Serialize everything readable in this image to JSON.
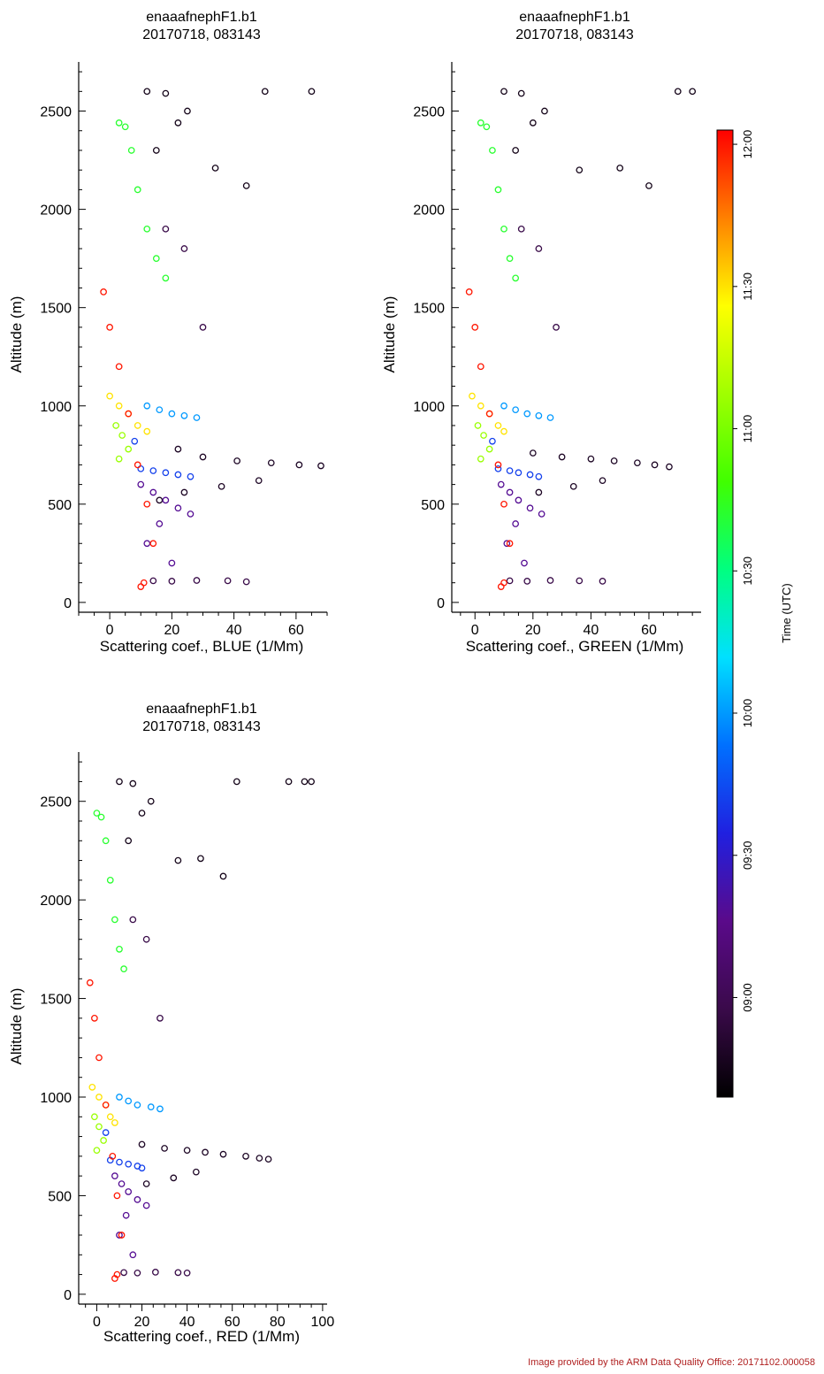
{
  "credit": "Image provided by the ARM Data Quality Office: 20171102.000058",
  "colorbar": {
    "label": "Time (UTC)",
    "ticks": [
      "09:00",
      "09:30",
      "10:00",
      "10:30",
      "11:00",
      "11:30",
      "12:00"
    ],
    "tick_hours": [
      9.0,
      9.5,
      10.0,
      10.5,
      11.0,
      11.5,
      12.0
    ],
    "range_hours": [
      8.65,
      12.05
    ],
    "stops": [
      "#000000",
      "#3a0a4a",
      "#5a0a8a",
      "#2020e0",
      "#0070ff",
      "#00e0ff",
      "#00ff80",
      "#40ff00",
      "#a0ff00",
      "#ffff00",
      "#ff8000",
      "#ff0000"
    ]
  },
  "chart_data": [
    {
      "type": "scatter",
      "title": "enaaafnephF1.b1",
      "subtitle": "20170718, 083143",
      "xlabel": "Scattering coef., BLUE (1/Mm)",
      "ylabel": "Altitude (m)",
      "xlim": [
        -10,
        70
      ],
      "ylim": [
        -50,
        2750
      ],
      "xticks": [
        0,
        20,
        40,
        60
      ],
      "xtick_labels": [
        "0",
        "20",
        "40",
        "60"
      ],
      "yticks": [
        0,
        500,
        1000,
        1500,
        2000,
        2500
      ],
      "ytick_labels": [
        "0",
        "500",
        "1000",
        "1500",
        "2000",
        "2500"
      ],
      "series": [
        {
          "time_h": 8.75,
          "x": [
            12,
            18,
            25,
            34,
            44,
            50,
            65,
            22,
            15
          ],
          "y": [
            2600,
            2590,
            2500,
            2210,
            2120,
            2600,
            2600,
            2440,
            2300
          ]
        },
        {
          "time_h": 8.8,
          "x": [
            22,
            30,
            41,
            52,
            61,
            68,
            48,
            36,
            24,
            16
          ],
          "y": [
            780,
            740,
            720,
            710,
            700,
            695,
            620,
            590,
            560,
            520
          ]
        },
        {
          "time_h": 8.95,
          "x": [
            14,
            20,
            28,
            38,
            44,
            18,
            24,
            30
          ],
          "y": [
            110,
            108,
            112,
            110,
            105,
            1900,
            1800,
            1400
          ]
        },
        {
          "time_h": 9.3,
          "x": [
            10,
            14,
            18,
            22,
            26,
            16,
            12,
            20
          ],
          "y": [
            600,
            560,
            520,
            480,
            450,
            400,
            300,
            200
          ]
        },
        {
          "time_h": 9.7,
          "x": [
            10,
            14,
            18,
            22,
            26,
            8
          ],
          "y": [
            680,
            670,
            660,
            650,
            640,
            820
          ]
        },
        {
          "time_h": 10.0,
          "x": [
            12,
            16,
            20,
            24,
            28
          ],
          "y": [
            1000,
            980,
            960,
            950,
            940
          ]
        },
        {
          "time_h": 10.7,
          "x": [
            3,
            5,
            7,
            9,
            12,
            15,
            18
          ],
          "y": [
            2440,
            2420,
            2300,
            2100,
            1900,
            1750,
            1650
          ]
        },
        {
          "time_h": 11.1,
          "x": [
            2,
            4,
            6,
            3
          ],
          "y": [
            900,
            850,
            780,
            730
          ]
        },
        {
          "time_h": 11.5,
          "x": [
            0,
            3,
            6,
            9,
            12
          ],
          "y": [
            1050,
            1000,
            960,
            900,
            870
          ]
        },
        {
          "time_h": 12.0,
          "x": [
            -2,
            0,
            3,
            6,
            9,
            12,
            14,
            11,
            10
          ],
          "y": [
            1580,
            1400,
            1200,
            960,
            700,
            500,
            300,
            100,
            80
          ]
        }
      ]
    },
    {
      "type": "scatter",
      "title": "enaaafnephF1.b1",
      "subtitle": "20170718, 083143",
      "xlabel": "Scattering coef., GREEN (1/Mm)",
      "ylabel": "Altitude (m)",
      "xlim": [
        -8,
        78
      ],
      "ylim": [
        -50,
        2750
      ],
      "xticks": [
        0,
        20,
        40,
        60
      ],
      "xtick_labels": [
        "0",
        "20",
        "40",
        "60"
      ],
      "yticks": [
        0,
        500,
        1000,
        1500,
        2000,
        2500
      ],
      "ytick_labels": [
        "0",
        "500",
        "1000",
        "1500",
        "2000",
        "2500"
      ],
      "series": [
        {
          "time_h": 8.75,
          "x": [
            10,
            16,
            24,
            36,
            50,
            60,
            70,
            75,
            20,
            14
          ],
          "y": [
            2600,
            2590,
            2500,
            2200,
            2210,
            2120,
            2600,
            2600,
            2440,
            2300
          ]
        },
        {
          "time_h": 8.8,
          "x": [
            20,
            30,
            40,
            48,
            56,
            62,
            67,
            44,
            34,
            22
          ],
          "y": [
            760,
            740,
            730,
            720,
            710,
            700,
            690,
            620,
            590,
            560
          ]
        },
        {
          "time_h": 8.95,
          "x": [
            12,
            18,
            26,
            36,
            44,
            16,
            22,
            28
          ],
          "y": [
            110,
            108,
            112,
            110,
            108,
            1900,
            1800,
            1400
          ]
        },
        {
          "time_h": 9.3,
          "x": [
            9,
            12,
            15,
            19,
            23,
            14,
            11,
            17
          ],
          "y": [
            600,
            560,
            520,
            480,
            450,
            400,
            300,
            200
          ]
        },
        {
          "time_h": 9.7,
          "x": [
            8,
            12,
            15,
            19,
            22,
            6
          ],
          "y": [
            680,
            670,
            660,
            650,
            640,
            820
          ]
        },
        {
          "time_h": 10.0,
          "x": [
            10,
            14,
            18,
            22,
            26
          ],
          "y": [
            1000,
            980,
            960,
            950,
            940
          ]
        },
        {
          "time_h": 10.7,
          "x": [
            2,
            4,
            6,
            8,
            10,
            12,
            14
          ],
          "y": [
            2440,
            2420,
            2300,
            2100,
            1900,
            1750,
            1650
          ]
        },
        {
          "time_h": 11.1,
          "x": [
            1,
            3,
            5,
            2
          ],
          "y": [
            900,
            850,
            780,
            730
          ]
        },
        {
          "time_h": 11.5,
          "x": [
            -1,
            2,
            5,
            8,
            10
          ],
          "y": [
            1050,
            1000,
            960,
            900,
            870
          ]
        },
        {
          "time_h": 12.0,
          "x": [
            -2,
            0,
            2,
            5,
            8,
            10,
            12,
            10,
            9
          ],
          "y": [
            1580,
            1400,
            1200,
            960,
            700,
            500,
            300,
            100,
            80
          ]
        }
      ]
    },
    {
      "type": "scatter",
      "title": "enaaafnephF1.b1",
      "subtitle": "20170718, 083143",
      "xlabel": "Scattering coef., RED (1/Mm)",
      "ylabel": "Altitude (m)",
      "xlim": [
        -8,
        102
      ],
      "ylim": [
        -50,
        2750
      ],
      "xticks": [
        0,
        20,
        40,
        60,
        80,
        100
      ],
      "xtick_labels": [
        "0",
        "20",
        "40",
        "60",
        "80",
        "100"
      ],
      "yticks": [
        0,
        500,
        1000,
        1500,
        2000,
        2500
      ],
      "ytick_labels": [
        "0",
        "500",
        "1000",
        "1500",
        "2000",
        "2500"
      ],
      "series": [
        {
          "time_h": 8.75,
          "x": [
            10,
            16,
            24,
            36,
            46,
            56,
            62,
            85,
            92,
            95,
            20,
            14
          ],
          "y": [
            2600,
            2590,
            2500,
            2200,
            2210,
            2120,
            2600,
            2600,
            2600,
            2600,
            2440,
            2300
          ]
        },
        {
          "time_h": 8.8,
          "x": [
            20,
            30,
            40,
            48,
            56,
            66,
            72,
            76,
            44,
            34,
            22
          ],
          "y": [
            760,
            740,
            730,
            720,
            710,
            700,
            690,
            685,
            620,
            590,
            560
          ]
        },
        {
          "time_h": 8.95,
          "x": [
            12,
            18,
            26,
            36,
            40,
            16,
            22,
            28
          ],
          "y": [
            110,
            108,
            112,
            110,
            108,
            1900,
            1800,
            1400
          ]
        },
        {
          "time_h": 9.3,
          "x": [
            8,
            11,
            14,
            18,
            22,
            13,
            10,
            16
          ],
          "y": [
            600,
            560,
            520,
            480,
            450,
            400,
            300,
            200
          ]
        },
        {
          "time_h": 9.7,
          "x": [
            6,
            10,
            14,
            18,
            20,
            4
          ],
          "y": [
            680,
            670,
            660,
            650,
            640,
            820
          ]
        },
        {
          "time_h": 10.0,
          "x": [
            10,
            14,
            18,
            24,
            28
          ],
          "y": [
            1000,
            980,
            960,
            950,
            940
          ]
        },
        {
          "time_h": 10.7,
          "x": [
            0,
            2,
            4,
            6,
            8,
            10,
            12
          ],
          "y": [
            2440,
            2420,
            2300,
            2100,
            1900,
            1750,
            1650
          ]
        },
        {
          "time_h": 11.1,
          "x": [
            -1,
            1,
            3,
            0
          ],
          "y": [
            900,
            850,
            780,
            730
          ]
        },
        {
          "time_h": 11.5,
          "x": [
            -2,
            1,
            4,
            6,
            8
          ],
          "y": [
            1050,
            1000,
            960,
            900,
            870
          ]
        },
        {
          "time_h": 12.0,
          "x": [
            -3,
            -1,
            1,
            4,
            7,
            9,
            11,
            9,
            8
          ],
          "y": [
            1580,
            1400,
            1200,
            960,
            700,
            500,
            300,
            100,
            80
          ]
        }
      ]
    }
  ]
}
